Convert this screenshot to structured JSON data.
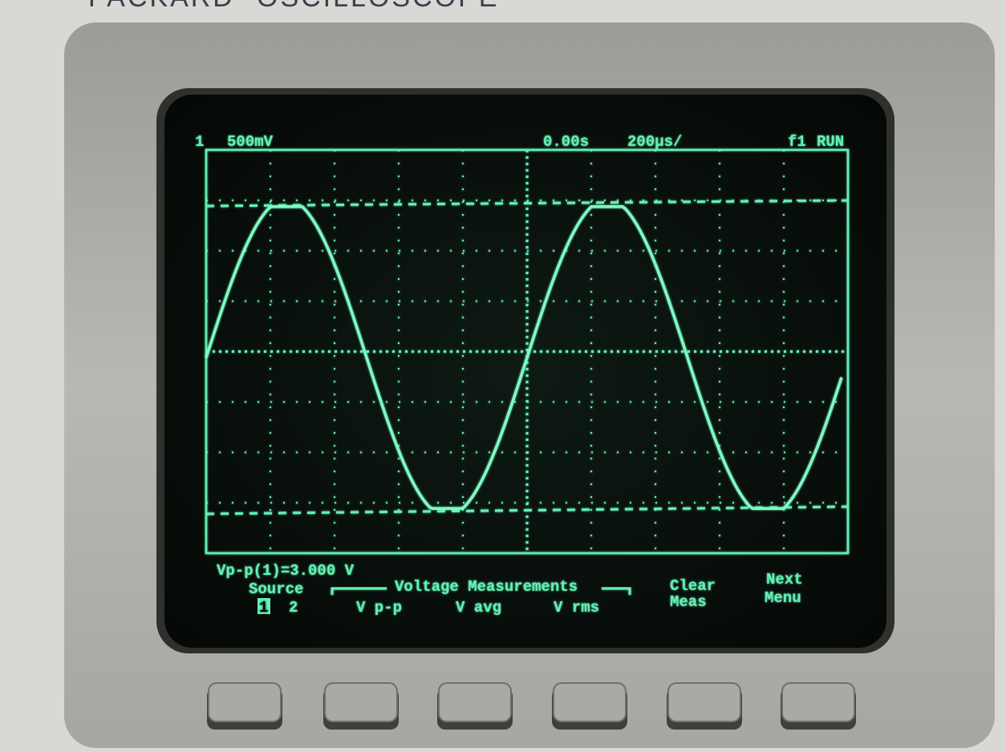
{
  "panel": {
    "brand": "PACKARD",
    "model": "OSCILLOSCOPE"
  },
  "screen": {
    "status": {
      "channel": "1",
      "scale": "500mV",
      "trigger": "0.00s",
      "timebase": "200µs/",
      "trigger_source": "f1",
      "run_state": "RUN"
    },
    "measurement": "Vp-p(1)=3.000 V",
    "group_label": "Voltage Measurements",
    "softkeys": {
      "source": {
        "label": "Source",
        "options": [
          "1",
          "2"
        ]
      },
      "vpp": "V p-p",
      "vavg": "V avg",
      "vrms": "V rms",
      "clear": [
        "Clear",
        "Meas"
      ],
      "next": [
        "Next",
        "Menu"
      ]
    }
  }
}
